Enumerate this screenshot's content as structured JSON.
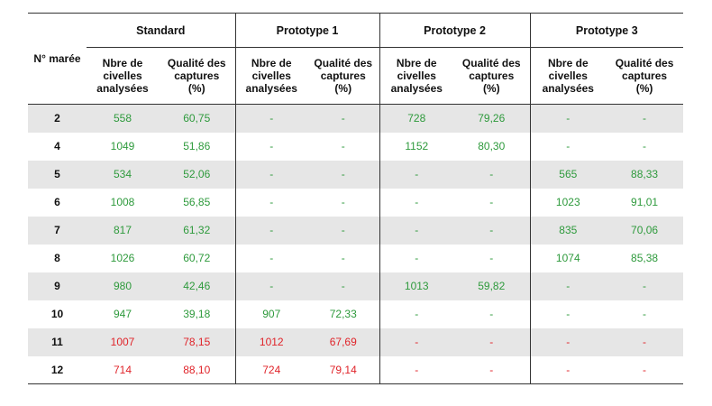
{
  "table": {
    "corner_label": "N° marée",
    "groups": [
      "Standard",
      "Prototype 1",
      "Prototype 2",
      "Prototype 3"
    ],
    "sub_headers": [
      [
        "Nbre de",
        "civelles",
        "analysées"
      ],
      [
        "Qualité des",
        "captures",
        "(%)"
      ]
    ],
    "rows": [
      {
        "id": "2",
        "shade": true,
        "cells": [
          [
            "558",
            "g"
          ],
          [
            "60,75",
            "g"
          ],
          [
            "-",
            "g"
          ],
          [
            "-",
            "g"
          ],
          [
            "728",
            "g"
          ],
          [
            "79,26",
            "g"
          ],
          [
            "-",
            "g"
          ],
          [
            "-",
            "g"
          ]
        ]
      },
      {
        "id": "4",
        "shade": false,
        "cells": [
          [
            "1049",
            "g"
          ],
          [
            "51,86",
            "g"
          ],
          [
            "-",
            "g"
          ],
          [
            "-",
            "g"
          ],
          [
            "1152",
            "g"
          ],
          [
            "80,30",
            "g"
          ],
          [
            "-",
            "g"
          ],
          [
            "-",
            "g"
          ]
        ]
      },
      {
        "id": "5",
        "shade": true,
        "cells": [
          [
            "534",
            "g"
          ],
          [
            "52,06",
            "g"
          ],
          [
            "-",
            "g"
          ],
          [
            "-",
            "g"
          ],
          [
            "-",
            "g"
          ],
          [
            "-",
            "g"
          ],
          [
            "565",
            "g"
          ],
          [
            "88,33",
            "g"
          ]
        ]
      },
      {
        "id": "6",
        "shade": false,
        "cells": [
          [
            "1008",
            "g"
          ],
          [
            "56,85",
            "g"
          ],
          [
            "-",
            "g"
          ],
          [
            "-",
            "g"
          ],
          [
            "-",
            "g"
          ],
          [
            "-",
            "g"
          ],
          [
            "1023",
            "g"
          ],
          [
            "91,01",
            "g"
          ]
        ]
      },
      {
        "id": "7",
        "shade": true,
        "cells": [
          [
            "817",
            "g"
          ],
          [
            "61,32",
            "g"
          ],
          [
            "-",
            "g"
          ],
          [
            "-",
            "g"
          ],
          [
            "-",
            "g"
          ],
          [
            "-",
            "g"
          ],
          [
            "835",
            "g"
          ],
          [
            "70,06",
            "g"
          ]
        ]
      },
      {
        "id": "8",
        "shade": false,
        "cells": [
          [
            "1026",
            "g"
          ],
          [
            "60,72",
            "g"
          ],
          [
            "-",
            "g"
          ],
          [
            "-",
            "g"
          ],
          [
            "-",
            "g"
          ],
          [
            "-",
            "g"
          ],
          [
            "1074",
            "g"
          ],
          [
            "85,38",
            "g"
          ]
        ]
      },
      {
        "id": "9",
        "shade": true,
        "cells": [
          [
            "980",
            "g"
          ],
          [
            "42,46",
            "g"
          ],
          [
            "-",
            "g"
          ],
          [
            "-",
            "g"
          ],
          [
            "1013",
            "g"
          ],
          [
            "59,82",
            "g"
          ],
          [
            "-",
            "g"
          ],
          [
            "-",
            "g"
          ]
        ]
      },
      {
        "id": "10",
        "shade": false,
        "cells": [
          [
            "947",
            "g"
          ],
          [
            "39,18",
            "g"
          ],
          [
            "907",
            "g"
          ],
          [
            "72,33",
            "g"
          ],
          [
            "-",
            "g"
          ],
          [
            "-",
            "g"
          ],
          [
            "-",
            "g"
          ],
          [
            "-",
            "g"
          ]
        ]
      },
      {
        "id": "11",
        "shade": true,
        "cells": [
          [
            "1007",
            "r"
          ],
          [
            "78,15",
            "r"
          ],
          [
            "1012",
            "r"
          ],
          [
            "67,69",
            "r"
          ],
          [
            "-",
            "r"
          ],
          [
            "-",
            "r"
          ],
          [
            "-",
            "r"
          ],
          [
            "-",
            "r"
          ]
        ]
      },
      {
        "id": "12",
        "shade": false,
        "cells": [
          [
            "714",
            "r"
          ],
          [
            "88,10",
            "r"
          ],
          [
            "724",
            "r"
          ],
          [
            "79,14",
            "r"
          ],
          [
            "-",
            "r"
          ],
          [
            "-",
            "r"
          ],
          [
            "-",
            "r"
          ],
          [
            "-",
            "r"
          ]
        ]
      }
    ]
  },
  "colors": {
    "green": "#2e9a3c",
    "red": "#e0242a",
    "shade": "#e6e6e6"
  }
}
